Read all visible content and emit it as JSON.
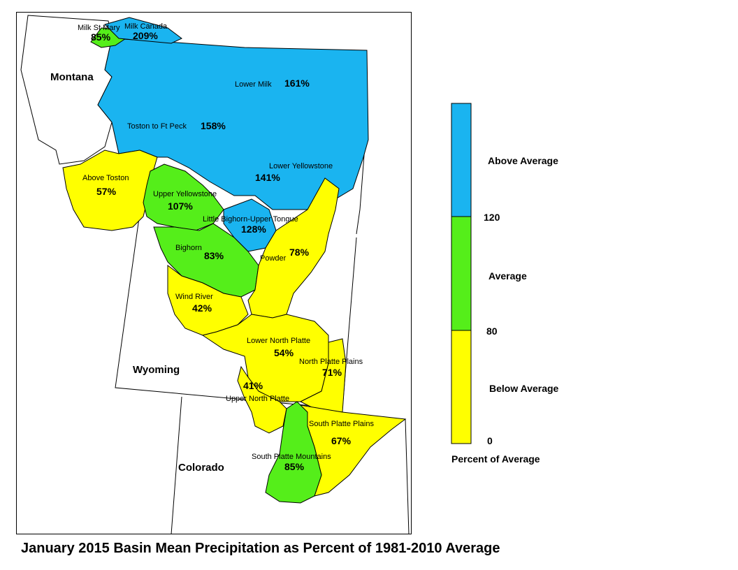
{
  "title": "January 2015 Basin Mean Precipitation as Percent of 1981-2010 Average",
  "colors": {
    "above": "#1ab4f0",
    "average": "#55ee1a",
    "below": "#ffff00",
    "outline": "#000000"
  },
  "states": {
    "montana": "Montana",
    "wyoming": "Wyoming",
    "colorado": "Colorado"
  },
  "basins": {
    "milk_st_mary": {
      "name": "Milk St Mary",
      "pct": "85%",
      "category": "average"
    },
    "milk_canada": {
      "name": "Milk Canada",
      "pct": "209%",
      "category": "above"
    },
    "lower_milk": {
      "name": "Lower Milk",
      "pct": "161%",
      "category": "above"
    },
    "toston_ft_peck": {
      "name": "Toston to Ft Peck",
      "pct": "158%",
      "category": "above"
    },
    "above_toston": {
      "name": "Above Toston",
      "pct": "57%",
      "category": "below"
    },
    "lower_yellowstone": {
      "name": "Lower Yellowstone",
      "pct": "141%",
      "category": "above"
    },
    "upper_yellowstone": {
      "name": "Upper Yellowstone",
      "pct": "107%",
      "category": "average"
    },
    "little_bighorn": {
      "name": "Little Bighorn-Upper Tongue",
      "pct": "128%",
      "category": "above"
    },
    "bighorn": {
      "name": "Bighorn",
      "pct": "83%",
      "category": "average"
    },
    "powder": {
      "name": "Powder",
      "pct": "78%",
      "category": "below"
    },
    "wind_river": {
      "name": "Wind River",
      "pct": "42%",
      "category": "below"
    },
    "lower_north_platte": {
      "name": "Lower North Platte",
      "pct": "54%",
      "category": "below"
    },
    "north_platte_plains": {
      "name": "North Platte Plains",
      "pct": "71%",
      "category": "below"
    },
    "upper_north_platte": {
      "name": "Upper North Platte",
      "pct": "41%",
      "category": "below"
    },
    "south_platte_plains": {
      "name": "South Platte Plains",
      "pct": "67%",
      "category": "below"
    },
    "south_platte_mountains": {
      "name": "South Platte Mountains",
      "pct": "85%",
      "category": "average"
    }
  },
  "legend": {
    "classes": [
      {
        "label": "Above Average",
        "min": 120,
        "color": "#1ab4f0"
      },
      {
        "label": "Average",
        "min": 80,
        "max": 120,
        "color": "#55ee1a"
      },
      {
        "label": "Below Average",
        "min": 0,
        "max": 80,
        "color": "#ffff00"
      }
    ],
    "breaks": [
      "120",
      "80",
      "0"
    ],
    "caption": "Percent of Average"
  }
}
